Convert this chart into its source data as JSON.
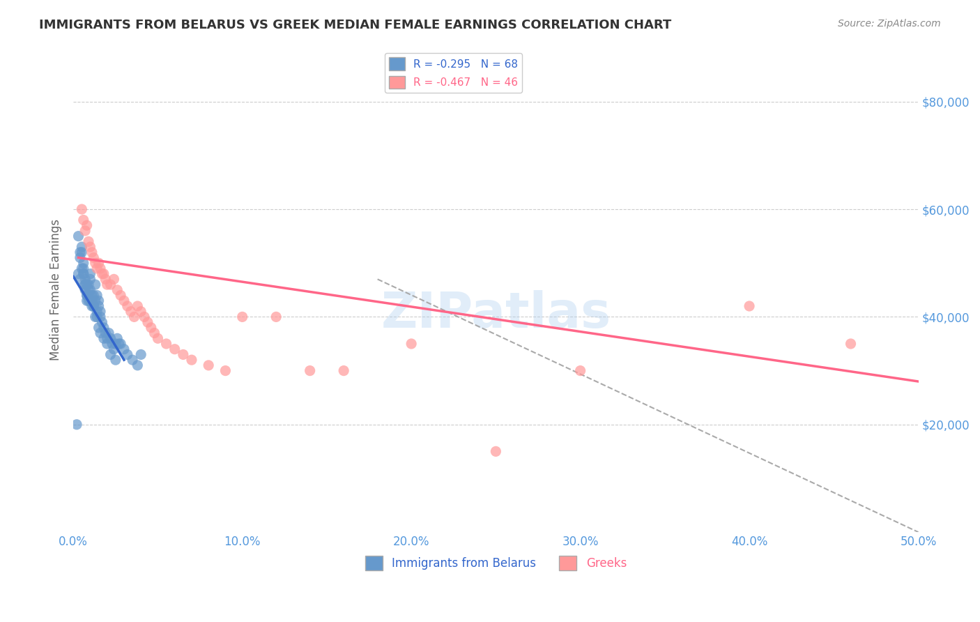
{
  "title": "IMMIGRANTS FROM BELARUS VS GREEK MEDIAN FEMALE EARNINGS CORRELATION CHART",
  "source": "Source: ZipAtlas.com",
  "xlabel_bottom": "",
  "ylabel": "Median Female Earnings",
  "x_ticklabels": [
    "0.0%",
    "10.0%",
    "20.0%",
    "30.0%",
    "40.0%",
    "50.0%"
  ],
  "y_ticklabels": [
    "$20,000",
    "$40,000",
    "$60,000",
    "$80,000"
  ],
  "xlim": [
    0.0,
    0.5
  ],
  "ylim": [
    0,
    90000
  ],
  "legend_r1": "R = -0.295   N = 68",
  "legend_r2": "R = -0.467   N = 46",
  "color_blue": "#6699CC",
  "color_pink": "#FF9999",
  "color_blue_line": "#3366CC",
  "color_pink_line": "#FF6688",
  "color_dashed": "#AAAAAA",
  "title_color": "#333333",
  "axis_color": "#5599DD",
  "watermark": "ZIPatlas",
  "legend_label1": "Immigrants from Belarus",
  "legend_label2": "Greeks",
  "blue_scatter_x": [
    0.002,
    0.003,
    0.004,
    0.004,
    0.005,
    0.005,
    0.006,
    0.006,
    0.006,
    0.007,
    0.007,
    0.007,
    0.008,
    0.008,
    0.008,
    0.009,
    0.009,
    0.009,
    0.01,
    0.01,
    0.01,
    0.011,
    0.011,
    0.012,
    0.012,
    0.013,
    0.013,
    0.014,
    0.014,
    0.015,
    0.015,
    0.016,
    0.016,
    0.017,
    0.018,
    0.019,
    0.02,
    0.021,
    0.022,
    0.023,
    0.024,
    0.025,
    0.026,
    0.027,
    0.028,
    0.03,
    0.032,
    0.035,
    0.038,
    0.04,
    0.003,
    0.004,
    0.005,
    0.006,
    0.007,
    0.008,
    0.009,
    0.01,
    0.011,
    0.012,
    0.013,
    0.014,
    0.015,
    0.016,
    0.018,
    0.02,
    0.022,
    0.025
  ],
  "blue_scatter_y": [
    20000,
    48000,
    47000,
    51000,
    52000,
    53000,
    49000,
    50000,
    48000,
    46000,
    47000,
    45000,
    44000,
    43000,
    46000,
    45000,
    44000,
    46000,
    47000,
    48000,
    45000,
    44000,
    43000,
    42000,
    44000,
    46000,
    43000,
    41000,
    44000,
    43000,
    42000,
    41000,
    40000,
    39000,
    38000,
    37000,
    36000,
    37000,
    36000,
    35000,
    34000,
    35000,
    36000,
    35000,
    35000,
    34000,
    33000,
    32000,
    31000,
    33000,
    55000,
    52000,
    49000,
    48000,
    46000,
    44000,
    43000,
    43000,
    42000,
    42000,
    40000,
    40000,
    38000,
    37000,
    36000,
    35000,
    33000,
    32000
  ],
  "pink_scatter_x": [
    0.005,
    0.006,
    0.007,
    0.008,
    0.009,
    0.01,
    0.011,
    0.012,
    0.013,
    0.014,
    0.015,
    0.016,
    0.017,
    0.018,
    0.019,
    0.02,
    0.022,
    0.024,
    0.026,
    0.028,
    0.03,
    0.032,
    0.034,
    0.036,
    0.038,
    0.04,
    0.042,
    0.044,
    0.046,
    0.048,
    0.05,
    0.055,
    0.06,
    0.065,
    0.07,
    0.08,
    0.09,
    0.1,
    0.12,
    0.14,
    0.16,
    0.2,
    0.25,
    0.3,
    0.4,
    0.46
  ],
  "pink_scatter_y": [
    60000,
    58000,
    56000,
    57000,
    54000,
    53000,
    52000,
    51000,
    50000,
    49000,
    50000,
    49000,
    48000,
    48000,
    47000,
    46000,
    46000,
    47000,
    45000,
    44000,
    43000,
    42000,
    41000,
    40000,
    42000,
    41000,
    40000,
    39000,
    38000,
    37000,
    36000,
    35000,
    34000,
    33000,
    32000,
    31000,
    30000,
    40000,
    40000,
    30000,
    30000,
    35000,
    15000,
    30000,
    42000,
    35000
  ],
  "blue_line_x": [
    0.0,
    0.03
  ],
  "blue_line_y": [
    47500,
    32000
  ],
  "pink_line_x": [
    0.003,
    0.5
  ],
  "pink_line_y": [
    51000,
    28000
  ],
  "dashed_line_x": [
    0.18,
    0.5
  ],
  "dashed_line_y": [
    47000,
    0
  ]
}
